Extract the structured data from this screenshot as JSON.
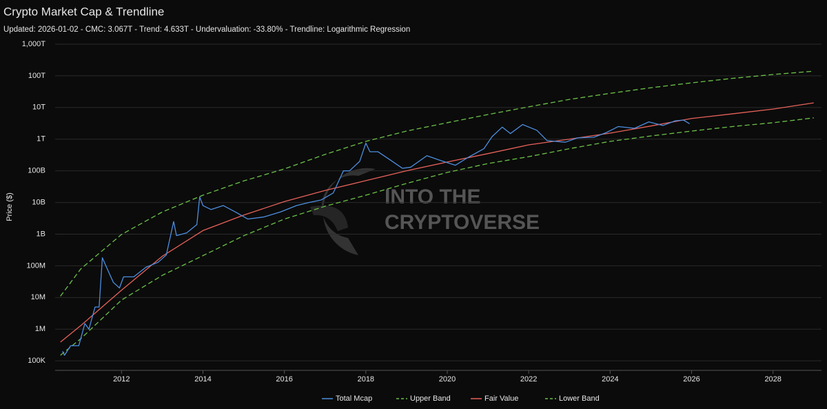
{
  "chart_data": {
    "type": "line",
    "title": "Crypto Market Cap & Trendline",
    "subtitle": "Updated: 2026-01-02 - CMC: 3.067T - Trend: 4.633T - Undervaluation: -33.80% - Trendline: Logarithmic Regression",
    "y_label": "Price ($)",
    "watermark": [
      "INTO THE",
      "CRYPTOVERSE"
    ],
    "log_y": true,
    "grid": true,
    "legend": "bottom",
    "xlim": [
      2010.37,
      2029.19
    ],
    "xticks": [
      2012,
      2014,
      2016,
      2018,
      2020,
      2022,
      2024,
      2026,
      2028
    ],
    "ylim": [
      50000,
      1000000000000000.0
    ],
    "yticks": [
      {
        "value": 100000,
        "label": "100K"
      },
      {
        "value": 1000000,
        "label": "1M"
      },
      {
        "value": 10000000,
        "label": "10M"
      },
      {
        "value": 100000000,
        "label": "100M"
      },
      {
        "value": 1000000000,
        "label": "1B"
      },
      {
        "value": 10000000000,
        "label": "10B"
      },
      {
        "value": 100000000000,
        "label": "100B"
      },
      {
        "value": 1000000000000,
        "label": "1T"
      },
      {
        "value": 10000000000000,
        "label": "10T"
      },
      {
        "value": 100000000000000,
        "label": "100T"
      },
      {
        "value": 1000000000000000,
        "label": "1,000T"
      }
    ],
    "series": [
      {
        "name": "Total Mcap",
        "color": "#4d8fe0",
        "dashed": false,
        "x": [
          2010.55,
          2010.6,
          2010.75,
          2010.95,
          2011.1,
          2011.2,
          2011.35,
          2011.45,
          2011.53,
          2011.65,
          2011.8,
          2011.95,
          2012.05,
          2012.3,
          2012.6,
          2012.9,
          2013.1,
          2013.28,
          2013.35,
          2013.6,
          2013.85,
          2013.92,
          2014.0,
          2014.2,
          2014.5,
          2014.8,
          2015.1,
          2015.5,
          2015.9,
          2016.3,
          2016.6,
          2016.9,
          2017.2,
          2017.45,
          2017.6,
          2017.85,
          2018.0,
          2018.1,
          2018.3,
          2018.6,
          2018.9,
          2019.1,
          2019.5,
          2019.8,
          2020.2,
          2020.5,
          2020.9,
          2021.1,
          2021.35,
          2021.55,
          2021.85,
          2022.2,
          2022.45,
          2022.9,
          2023.2,
          2023.6,
          2023.9,
          2024.2,
          2024.6,
          2024.95,
          2025.3,
          2025.6,
          2025.8,
          2025.95
        ],
        "values": [
          200000,
          150000,
          300000,
          300000,
          1500000,
          1000000,
          5000000,
          5000000,
          180000000,
          80000000,
          30000000,
          20000000,
          45000000,
          45000000,
          90000000,
          130000000,
          220000000,
          2500000000,
          900000000,
          1100000000,
          2000000000,
          15000000000,
          8000000000,
          6000000000,
          8000000000,
          5000000000,
          3000000000,
          3500000000,
          5000000000,
          8000000000,
          10000000000,
          12000000000,
          20000000000,
          100000000000,
          100000000000,
          200000000000,
          750000000000,
          400000000000,
          400000000000,
          220000000000,
          120000000000,
          130000000000,
          300000000000,
          220000000000,
          150000000000,
          260000000000,
          500000000000,
          1200000000000,
          2400000000000,
          1500000000000,
          2900000000000,
          1900000000000,
          900000000000,
          800000000000,
          1100000000000,
          1150000000000,
          1600000000000,
          2500000000000,
          2200000000000,
          3500000000000,
          2700000000000,
          3800000000000,
          4000000000000,
          3067000000000
        ]
      },
      {
        "name": "Upper Band",
        "color": "#6cc24a",
        "dashed": true,
        "x": [
          2010.5,
          2011,
          2012,
          2013,
          2014,
          2015,
          2016,
          2017,
          2018,
          2019,
          2020,
          2021,
          2022,
          2023,
          2024,
          2025,
          2026,
          2027,
          2028,
          2029
        ],
        "values": [
          11000000,
          80000000,
          980000000,
          5000000000,
          17000000000,
          48000000000,
          115000000000,
          330000000000,
          850000000000,
          1800000000000,
          3300000000000,
          6000000000000,
          10500000000000,
          18000000000000,
          28000000000000,
          42000000000000,
          60000000000000,
          83000000000000,
          110000000000000,
          140000000000000
        ]
      },
      {
        "name": "Fair Value",
        "color": "#e8625a",
        "dashed": false,
        "x": [
          2010.5,
          2011,
          2012,
          2013,
          2014,
          2015,
          2016,
          2017,
          2018,
          2019,
          2020,
          2021,
          2022,
          2023,
          2024,
          2025,
          2026,
          2027,
          2028,
          2029
        ],
        "values": [
          390000,
          1300000,
          17000000,
          200000000,
          1300000000,
          4000000000,
          10700000000,
          24000000000,
          49000000000,
          100000000000,
          190000000000,
          350000000000,
          660000000000,
          1000000000000,
          1550000000000,
          2600000000000,
          4500000000000,
          6300000000000,
          8900000000000,
          14000000000000
        ]
      },
      {
        "name": "Lower Band",
        "color": "#6cc24a",
        "dashed": true,
        "x": [
          2010.5,
          2011,
          2012,
          2013,
          2014,
          2015,
          2016,
          2017,
          2018,
          2019,
          2020,
          2021,
          2022,
          2023,
          2024,
          2025,
          2026,
          2027,
          2028,
          2029
        ],
        "values": [
          150000,
          500000,
          8300000,
          50000000,
          210000000,
          890000000,
          3000000000,
          7600000000,
          17000000000,
          40000000000,
          89000000000,
          170000000000,
          280000000000,
          500000000000,
          850000000000,
          1260000000000,
          1800000000000,
          2500000000000,
          3300000000000,
          4700000000000
        ]
      }
    ]
  }
}
